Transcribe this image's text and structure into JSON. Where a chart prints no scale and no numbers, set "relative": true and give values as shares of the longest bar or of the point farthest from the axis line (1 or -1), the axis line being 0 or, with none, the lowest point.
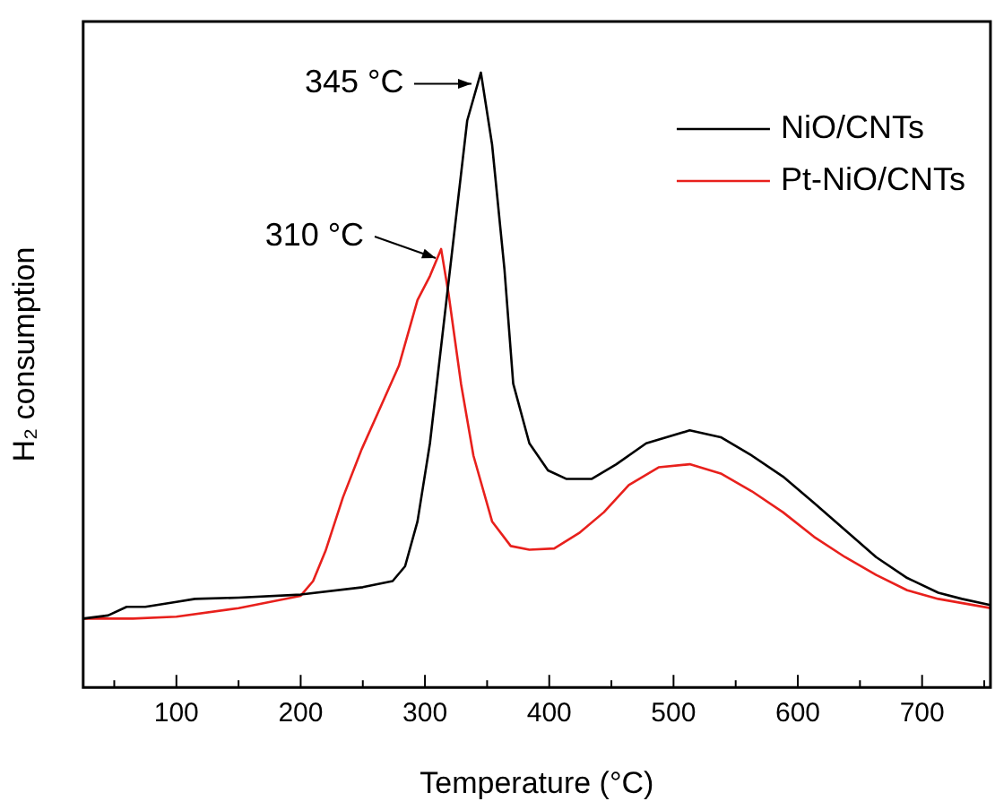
{
  "chart_data": {
    "type": "line",
    "xlabel": "Temperature (°C)",
    "ylabel": "H₂ consumption",
    "relative": true,
    "xlim": [
      25,
      755
    ],
    "xticks": [
      {
        "value": 50,
        "label": null
      },
      100,
      {
        "value": 150,
        "label": null
      },
      200,
      {
        "value": 250,
        "label": null
      },
      300,
      {
        "value": 350,
        "label": null
      },
      400,
      {
        "value": 450,
        "label": null
      },
      500,
      {
        "value": 550,
        "label": null
      },
      600,
      {
        "value": 650,
        "label": null
      },
      700,
      {
        "value": 750,
        "label": null
      }
    ],
    "grid": false,
    "legend": "top right",
    "marker": "none",
    "line_style": "solid",
    "annotations": [
      {
        "text": "345 °C",
        "x": 345,
        "y": 1.0
      },
      {
        "text": "310 °C",
        "x": 313,
        "y": 0.713
      }
    ],
    "series": [
      {
        "name": "NiO/CNTs",
        "color": "#000000",
        "x": [
          25,
          45,
          60,
          75,
          100,
          115,
          150,
          200,
          250,
          274,
          284,
          294,
          304,
          314,
          324,
          334,
          345,
          354,
          364,
          371,
          384,
          399,
          414,
          434,
          454,
          478,
          513,
          538,
          563,
          588,
          613,
          638,
          663,
          688,
          713,
          732,
          755
        ],
        "values": [
          0.112,
          0.117,
          0.131,
          0.131,
          0.139,
          0.144,
          0.146,
          0.151,
          0.163,
          0.173,
          0.197,
          0.27,
          0.397,
          0.572,
          0.747,
          0.922,
          1.0,
          0.883,
          0.679,
          0.494,
          0.397,
          0.353,
          0.339,
          0.339,
          0.363,
          0.397,
          0.418,
          0.407,
          0.377,
          0.343,
          0.3,
          0.256,
          0.212,
          0.178,
          0.154,
          0.144,
          0.134
        ]
      },
      {
        "name": "Pt-NiO/CNTs",
        "color": "#e8201c",
        "x": [
          25,
          65,
          100,
          150,
          200,
          210,
          220,
          234,
          249,
          264,
          279,
          294,
          304,
          313,
          319,
          329,
          339,
          354,
          369,
          384,
          404,
          424,
          444,
          464,
          488,
          513,
          538,
          563,
          588,
          613,
          638,
          663,
          688,
          713,
          755
        ],
        "values": [
          0.112,
          0.112,
          0.115,
          0.129,
          0.149,
          0.173,
          0.222,
          0.309,
          0.387,
          0.455,
          0.523,
          0.63,
          0.669,
          0.713,
          0.64,
          0.494,
          0.377,
          0.27,
          0.23,
          0.224,
          0.226,
          0.251,
          0.285,
          0.329,
          0.358,
          0.363,
          0.348,
          0.319,
          0.285,
          0.245,
          0.212,
          0.183,
          0.158,
          0.144,
          0.129
        ]
      }
    ]
  }
}
